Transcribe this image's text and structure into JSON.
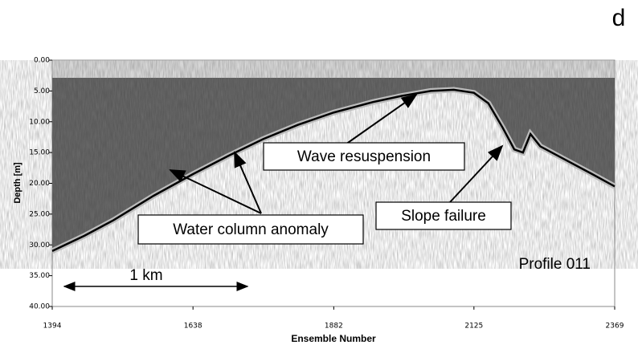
{
  "chart_data": {
    "type": "line",
    "panel_label": "d",
    "xlabel": "Ensemble Number",
    "ylabel": "Depth [m]",
    "x": [
      1394,
      1450,
      1500,
      1570,
      1638,
      1700,
      1760,
      1820,
      1882,
      1950,
      2000,
      2050,
      2090,
      2125,
      2150,
      2175,
      2195,
      2210,
      2223,
      2240,
      2280,
      2330,
      2369
    ],
    "values": [
      31,
      28.5,
      26,
      22,
      18.5,
      15.5,
      12.8,
      10.5,
      8.5,
      6.8,
      5.8,
      5,
      4.8,
      5.3,
      7,
      11,
      14.5,
      15,
      12,
      14,
      16,
      18.5,
      20.5
    ],
    "color": "#000000",
    "xlim": [
      1394,
      2369
    ],
    "xticks": [
      1394,
      1638,
      1882,
      2125,
      2369
    ],
    "ylim": [
      0,
      40
    ],
    "yticks": [
      {
        "value": 0,
        "label": "0.00"
      },
      {
        "value": 5,
        "label": "5.00"
      },
      {
        "value": 10,
        "label": "10.00"
      },
      {
        "value": 15,
        "label": "15.00"
      },
      {
        "value": 20,
        "label": "20.00"
      },
      {
        "value": 25,
        "label": "25.00"
      },
      {
        "value": 30,
        "label": "30.00"
      },
      {
        "value": 35,
        "label": "35.00"
      },
      {
        "value": 40,
        "label": "40.00"
      }
    ],
    "y_inverted": true,
    "annotations": [
      "Wave resuspension",
      "Slope failure",
      "Water column anomaly",
      "Profile 011",
      "1 km"
    ]
  }
}
